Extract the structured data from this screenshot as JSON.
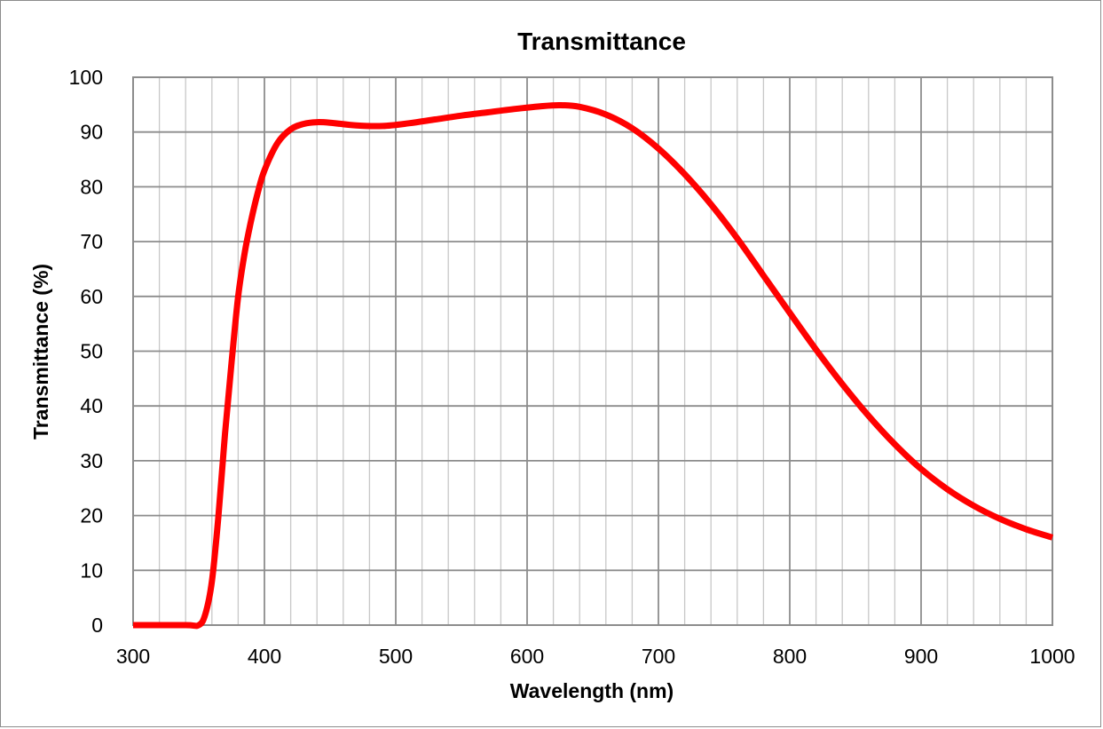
{
  "chart_data": {
    "type": "line",
    "title": "Transmittance",
    "xlabel": "Wavelength (nm)",
    "ylabel": "Transmittance (%)",
    "xlim": [
      300,
      1000
    ],
    "ylim": [
      0,
      100
    ],
    "x_major_step": 100,
    "x_minor_step": 20,
    "y_major_step": 10,
    "x_tick_labels": [
      "300",
      "400",
      "500",
      "600",
      "700",
      "800",
      "900",
      "1000"
    ],
    "y_tick_labels": [
      "0",
      "10",
      "20",
      "30",
      "40",
      "50",
      "60",
      "70",
      "80",
      "90",
      "100"
    ],
    "grid": true,
    "legend": "none",
    "series": [
      {
        "name": "Transmittance",
        "color": "#ff0000",
        "x": [
          300,
          340,
          350,
          355,
          360,
          365,
          370,
          375,
          380,
          385,
          390,
          395,
          400,
          410,
          420,
          430,
          440,
          450,
          470,
          490,
          510,
          530,
          550,
          570,
          590,
          610,
          625,
          640,
          660,
          680,
          700,
          720,
          740,
          760,
          780,
          800,
          820,
          840,
          860,
          880,
          900,
          920,
          940,
          960,
          980,
          1000
        ],
        "y": [
          0,
          0,
          0,
          2,
          8,
          20,
          35,
          48,
          60,
          68,
          74,
          79,
          83,
          88,
          90.5,
          91.5,
          91.8,
          91.7,
          91.2,
          91.1,
          91.6,
          92.3,
          93,
          93.6,
          94.2,
          94.7,
          94.9,
          94.6,
          93.2,
          90.7,
          87,
          82.3,
          76.8,
          70.6,
          63.8,
          57,
          50.3,
          44,
          38.2,
          33,
          28.5,
          24.8,
          21.8,
          19.4,
          17.5,
          16
        ]
      }
    ]
  }
}
